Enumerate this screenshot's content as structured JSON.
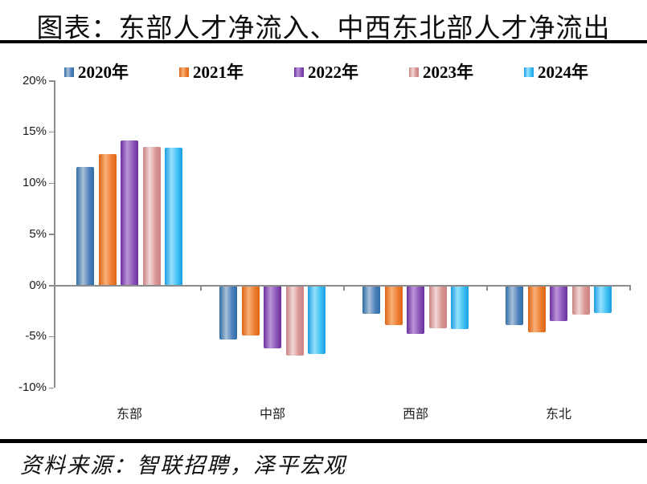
{
  "page": {
    "title": "图表：东部人才净流入、中西东北部人才净流出",
    "source": "资料来源：智联招聘，泽平宏观"
  },
  "chart_data": {
    "type": "bar",
    "title": "图表：东部人才净流入、中西东北部人才净流出",
    "categories": [
      "东部",
      "中部",
      "西部",
      "东北"
    ],
    "series": [
      {
        "name": "2020年",
        "values": [
          11.5,
          -5.2,
          -2.7,
          -3.8
        ],
        "color": "#4f81bd",
        "edge": "#2e6da4",
        "mid": "#aac1d8"
      },
      {
        "name": "2021年",
        "values": [
          12.8,
          -4.8,
          -3.8,
          -4.5
        ],
        "color": "#ed7d31",
        "edge": "#dd6414",
        "mid": "#f8b079"
      },
      {
        "name": "2022年",
        "values": [
          14.1,
          -6.1,
          -4.7,
          -3.4
        ],
        "color": "#8b56b8",
        "edge": "#6a2f9e",
        "mid": "#bb95d8"
      },
      {
        "name": "2023年",
        "values": [
          13.5,
          -6.8,
          -4.1,
          -2.8
        ],
        "color": "#d99694",
        "edge": "#c98381",
        "mid": "#f1d7d6"
      },
      {
        "name": "2024年",
        "values": [
          13.4,
          -6.6,
          -4.2,
          -2.6
        ],
        "color": "#3fc1f3",
        "edge": "#1b9de2",
        "mid": "#97e1fd"
      }
    ],
    "xlabel": "",
    "ylabel": "",
    "ylim": [
      -10,
      20
    ],
    "ytick_step": 5,
    "ytick_labels": [
      "20%",
      "15%",
      "10%",
      "5%",
      "0%",
      "-5%",
      "-10%"
    ],
    "grid": false,
    "legend_position": "top",
    "source": "资料来源：智联招聘，泽平宏观"
  }
}
